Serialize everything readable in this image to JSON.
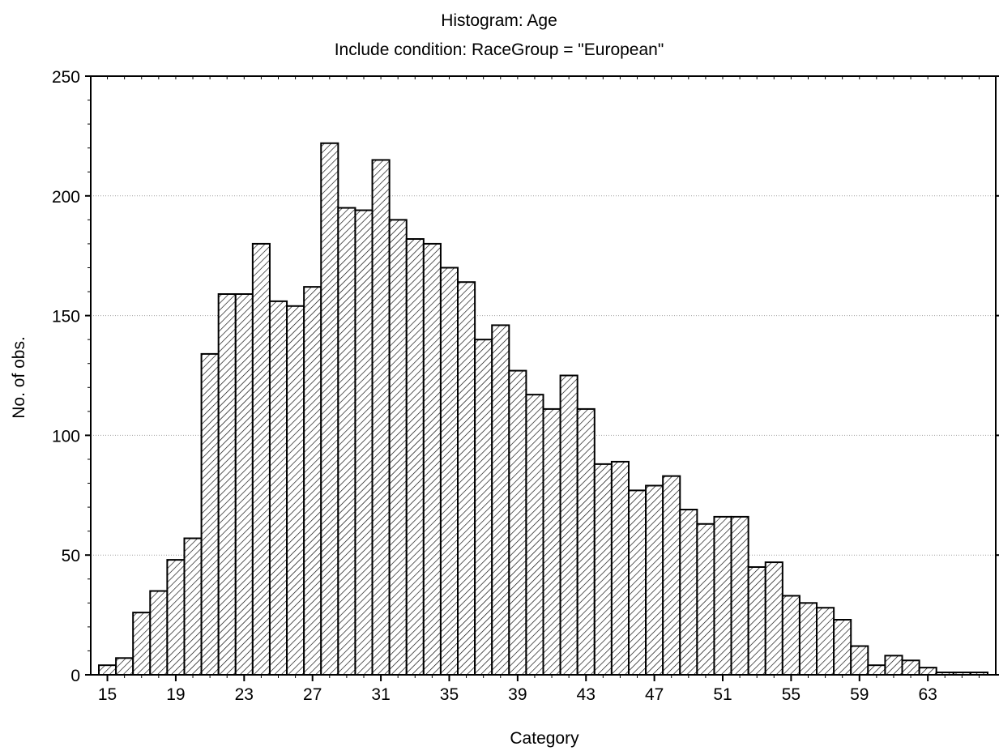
{
  "chart_data": {
    "type": "bar",
    "title": "Histogram: Age",
    "subtitle": "Include condition: RaceGroup = \"European\"",
    "xlabel": "Category",
    "ylabel": "No. of obs.",
    "categories": [
      15,
      16,
      17,
      18,
      19,
      20,
      21,
      22,
      23,
      24,
      25,
      26,
      27,
      28,
      29,
      30,
      31,
      32,
      33,
      34,
      35,
      36,
      37,
      38,
      39,
      40,
      41,
      42,
      43,
      44,
      45,
      46,
      47,
      48,
      49,
      50,
      51,
      52,
      53,
      54,
      55,
      56,
      57,
      58,
      59,
      60,
      61,
      62,
      63,
      64,
      65,
      66
    ],
    "values": [
      4,
      7,
      26,
      35,
      48,
      57,
      134,
      159,
      159,
      180,
      156,
      154,
      162,
      222,
      195,
      194,
      215,
      190,
      182,
      180,
      170,
      164,
      140,
      146,
      127,
      117,
      111,
      125,
      111,
      88,
      89,
      77,
      79,
      83,
      69,
      63,
      66,
      66,
      45,
      47,
      33,
      30,
      28,
      23,
      12,
      4,
      8,
      6,
      3,
      1,
      1,
      1
    ],
    "x_tick_labels": [
      "15",
      "19",
      "23",
      "27",
      "31",
      "35",
      "39",
      "43",
      "47",
      "51",
      "55",
      "59",
      "63"
    ],
    "y_ticks": [
      0,
      50,
      100,
      150,
      200,
      250
    ],
    "ylim": [
      0,
      250
    ],
    "grid": "horizontal dotted",
    "bar_fill": "diagonal hatch",
    "colors": {
      "bar_stroke": "#000000",
      "hatch": "#000000",
      "grid": "#a0a0a0",
      "background": "#ffffff"
    }
  }
}
